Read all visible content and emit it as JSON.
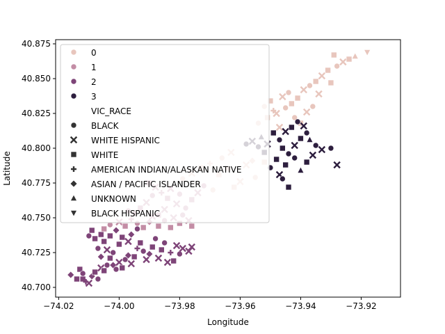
{
  "chart_data": {
    "type": "scatter",
    "xlabel": "Longitude",
    "ylabel": "Latitude",
    "xlim": [
      -74.021,
      -73.907
    ],
    "ylim": [
      40.693,
      40.878
    ],
    "xticks": [
      -74.02,
      -74.0,
      -73.98,
      -73.96,
      -73.94,
      -73.92
    ],
    "xtick_labels": [
      "−74.02",
      "−74.00",
      "−73.98",
      "−73.96",
      "−73.94",
      "−73.92"
    ],
    "yticks": [
      40.7,
      40.725,
      40.75,
      40.775,
      40.8,
      40.825,
      40.85,
      40.875
    ],
    "ytick_labels": [
      "40.700",
      "40.725",
      "40.750",
      "40.775",
      "40.800",
      "40.825",
      "40.850",
      "40.875"
    ],
    "grid": false,
    "legend_placement": "upper-left",
    "hue_series": [
      {
        "name": "0",
        "color": "#e8c6bd"
      },
      {
        "name": "1",
        "color": "#c38da5"
      },
      {
        "name": "2",
        "color": "#7e4478"
      },
      {
        "name": "3",
        "color": "#2d1e3e"
      }
    ],
    "extra_color": "#cccccc",
    "style_title": "VIC_RACE",
    "style_series": [
      {
        "name": "BLACK",
        "marker": "circle"
      },
      {
        "name": "WHITE HISPANIC",
        "marker": "x"
      },
      {
        "name": "WHITE",
        "marker": "square"
      },
      {
        "name": "AMERICAN INDIAN/ALASKAN NATIVE",
        "marker": "plus"
      },
      {
        "name": "ASIAN / PACIFIC ISLANDER",
        "marker": "diamond"
      },
      {
        "name": "UNKNOWN",
        "marker": "triangle-up"
      },
      {
        "name": "BLACK HISPANIC",
        "marker": "triangle-down"
      }
    ],
    "points": [
      [
        -74.016,
        40.709,
        2,
        4
      ],
      [
        -74.014,
        40.706,
        2,
        2
      ],
      [
        -74.013,
        40.713,
        2,
        2
      ],
      [
        -74.012,
        40.706,
        2,
        2
      ],
      [
        -74.011,
        40.704,
        2,
        3
      ],
      [
        -74.01,
        40.703,
        2,
        1
      ],
      [
        -74.012,
        40.71,
        2,
        0
      ],
      [
        -74.009,
        40.708,
        2,
        4
      ],
      [
        -74.008,
        40.711,
        2,
        2
      ],
      [
        -74.007,
        40.706,
        2,
        0
      ],
      [
        -74.006,
        40.714,
        2,
        1
      ],
      [
        -74.005,
        40.712,
        2,
        2
      ],
      [
        -74.004,
        40.716,
        2,
        0
      ],
      [
        -74.006,
        40.722,
        2,
        4
      ],
      [
        -74.007,
        40.728,
        2,
        0
      ],
      [
        -74.008,
        40.735,
        2,
        2
      ],
      [
        -74.005,
        40.733,
        2,
        2
      ],
      [
        -74.004,
        40.727,
        2,
        1
      ],
      [
        -74.003,
        40.721,
        2,
        2
      ],
      [
        -74.002,
        40.716,
        2,
        4
      ],
      [
        -74.001,
        40.713,
        2,
        0
      ],
      [
        -74.0,
        40.718,
        2,
        1
      ],
      [
        -73.999,
        40.714,
        2,
        2
      ],
      [
        -73.998,
        40.72,
        2,
        0
      ],
      [
        -73.997,
        40.723,
        2,
        4
      ],
      [
        -73.996,
        40.717,
        2,
        1
      ],
      [
        -73.995,
        40.722,
        2,
        2
      ],
      [
        -73.994,
        40.728,
        2,
        3
      ],
      [
        -73.993,
        40.732,
        2,
        2
      ],
      [
        -73.992,
        40.726,
        2,
        0
      ],
      [
        -73.991,
        40.72,
        2,
        1
      ],
      [
        -73.99,
        40.724,
        2,
        4
      ],
      [
        -73.989,
        40.729,
        2,
        2
      ],
      [
        -73.988,
        40.735,
        2,
        0
      ],
      [
        -73.987,
        40.721,
        2,
        1
      ],
      [
        -73.986,
        40.727,
        2,
        2
      ],
      [
        -73.985,
        40.732,
        2,
        0
      ],
      [
        -73.984,
        40.718,
        2,
        1
      ],
      [
        -73.983,
        40.725,
        2,
        3
      ],
      [
        -73.982,
        40.719,
        2,
        2
      ],
      [
        -73.981,
        40.73,
        2,
        1
      ],
      [
        -73.98,
        40.724,
        2,
        0
      ],
      [
        -73.979,
        40.728,
        2,
        1
      ],
      [
        -73.977,
        40.726,
        2,
        1
      ],
      [
        -73.976,
        40.729,
        2,
        1
      ],
      [
        -74.003,
        40.737,
        2,
        2
      ],
      [
        -74.001,
        40.741,
        2,
        4
      ],
      [
        -73.999,
        40.736,
        2,
        2
      ],
      [
        -74.009,
        40.741,
        2,
        2
      ],
      [
        -74.01,
        40.737,
        2,
        0
      ],
      [
        -73.996,
        40.738,
        2,
        4
      ],
      [
        -73.994,
        40.742,
        2,
        0
      ],
      [
        -74.002,
        40.725,
        2,
        0
      ],
      [
        -74.0,
        40.731,
        2,
        2
      ],
      [
        -73.997,
        40.733,
        2,
        1
      ],
      [
        -74.006,
        40.738,
        2,
        2
      ],
      [
        -74.005,
        40.742,
        1,
        2
      ],
      [
        -74.003,
        40.745,
        1,
        0
      ],
      [
        -74.0,
        40.747,
        1,
        1
      ],
      [
        -73.998,
        40.744,
        1,
        2
      ],
      [
        -73.996,
        40.749,
        1,
        3
      ],
      [
        -73.994,
        40.746,
        1,
        0
      ],
      [
        -73.992,
        40.743,
        1,
        2
      ],
      [
        -73.99,
        40.747,
        1,
        4
      ],
      [
        -73.989,
        40.751,
        1,
        1
      ],
      [
        -73.987,
        40.744,
        1,
        2
      ],
      [
        -73.985,
        40.748,
        1,
        0
      ],
      [
        -73.983,
        40.743,
        1,
        2
      ],
      [
        -73.982,
        40.75,
        1,
        1
      ],
      [
        -73.98,
        40.746,
        1,
        2
      ],
      [
        -73.979,
        40.752,
        1,
        0
      ],
      [
        -73.977,
        40.748,
        1,
        1
      ],
      [
        -73.976,
        40.744,
        1,
        2
      ],
      [
        -73.978,
        40.757,
        1,
        0
      ],
      [
        -73.981,
        40.76,
        1,
        1
      ],
      [
        -73.984,
        40.764,
        1,
        2
      ],
      [
        -73.986,
        40.768,
        1,
        3
      ],
      [
        -73.989,
        40.766,
        1,
        0
      ],
      [
        -73.991,
        40.761,
        1,
        1
      ],
      [
        -73.993,
        40.757,
        1,
        2
      ],
      [
        -73.995,
        40.753,
        1,
        4
      ],
      [
        -73.997,
        40.755,
        1,
        0
      ],
      [
        -73.985,
        40.756,
        1,
        1
      ],
      [
        -73.987,
        40.752,
        1,
        2
      ],
      [
        -73.983,
        40.771,
        1,
        1
      ],
      [
        -73.98,
        40.767,
        1,
        0
      ],
      [
        -73.976,
        40.763,
        1,
        2
      ],
      [
        -73.974,
        40.768,
        1,
        1
      ],
      [
        -73.972,
        40.773,
        1,
        0
      ],
      [
        -73.988,
        40.772,
        1,
        1
      ],
      [
        -73.99,
        40.775,
        1,
        2
      ],
      [
        -73.979,
        40.778,
        0,
        0
      ],
      [
        -73.976,
        40.782,
        0,
        1
      ],
      [
        -73.973,
        40.786,
        0,
        2
      ],
      [
        -73.97,
        40.789,
        0,
        3
      ],
      [
        -73.966,
        40.793,
        0,
        0
      ],
      [
        -73.963,
        40.797,
        0,
        1
      ],
      [
        -73.967,
        40.781,
        0,
        2
      ],
      [
        -73.964,
        40.785,
        0,
        0
      ],
      [
        -73.958,
        40.788,
        0,
        1
      ],
      [
        -73.956,
        40.791,
        0,
        4
      ],
      [
        -73.952,
        40.79,
        0,
        2
      ],
      [
        -73.955,
        40.779,
        0,
        0
      ],
      [
        -73.96,
        40.776,
        0,
        1
      ],
      [
        -73.962,
        40.772,
        0,
        2
      ],
      [
        -73.969,
        40.77,
        0,
        0
      ],
      [
        -73.954,
        40.818,
        0,
        0
      ],
      [
        -73.951,
        40.822,
        0,
        2
      ],
      [
        -73.948,
        40.825,
        0,
        1
      ],
      [
        -73.945,
        40.829,
        0,
        0
      ],
      [
        -73.943,
        40.832,
        0,
        2
      ],
      [
        -73.947,
        40.815,
        0,
        1
      ],
      [
        -73.949,
        40.827,
        0,
        3
      ],
      [
        -73.952,
        40.83,
        0,
        0
      ],
      [
        -73.95,
        40.834,
        0,
        2
      ],
      [
        -73.946,
        40.837,
        0,
        1
      ],
      [
        -73.944,
        40.84,
        0,
        0
      ],
      [
        -73.941,
        40.836,
        0,
        2
      ],
      [
        -73.939,
        40.842,
        0,
        1
      ],
      [
        -73.937,
        40.845,
        0,
        0
      ],
      [
        -73.935,
        40.848,
        0,
        2
      ],
      [
        -73.942,
        40.822,
        0,
        0
      ],
      [
        -73.938,
        40.826,
        0,
        1
      ],
      [
        -73.94,
        40.818,
        0,
        2
      ],
      [
        -73.936,
        40.83,
        0,
        0
      ],
      [
        -73.933,
        40.852,
        0,
        1
      ],
      [
        -73.931,
        40.856,
        0,
        2
      ],
      [
        -73.928,
        40.859,
        0,
        0
      ],
      [
        -73.926,
        40.862,
        0,
        1
      ],
      [
        -73.924,
        40.864,
        0,
        2
      ],
      [
        -73.922,
        40.866,
        0,
        5
      ],
      [
        -73.918,
        40.869,
        0,
        6
      ],
      [
        -73.929,
        40.867,
        0,
        2
      ],
      [
        -73.934,
        40.839,
        0,
        1
      ],
      [
        -73.93,
        40.847,
        0,
        2
      ],
      [
        -73.947,
        40.806,
        3,
        0
      ],
      [
        -73.949,
        40.811,
        3,
        2
      ],
      [
        -73.951,
        40.803,
        3,
        1
      ],
      [
        -73.953,
        40.808,
        3,
        5
      ],
      [
        -73.946,
        40.8,
        3,
        2
      ],
      [
        -73.944,
        40.796,
        3,
        0
      ],
      [
        -73.942,
        40.802,
        3,
        1
      ],
      [
        -73.94,
        40.807,
        3,
        2
      ],
      [
        -73.938,
        40.811,
        3,
        0
      ],
      [
        -73.945,
        40.812,
        3,
        1
      ],
      [
        -73.948,
        40.792,
        3,
        2
      ],
      [
        -73.95,
        40.786,
        3,
        0
      ],
      [
        -73.947,
        40.781,
        3,
        1
      ],
      [
        -73.945,
        40.788,
        3,
        2
      ],
      [
        -73.942,
        40.793,
        3,
        0
      ],
      [
        -73.94,
        40.784,
        3,
        5
      ],
      [
        -73.938,
        40.79,
        3,
        2
      ],
      [
        -73.936,
        40.795,
        3,
        1
      ],
      [
        -73.935,
        40.802,
        3,
        0
      ],
      [
        -73.933,
        40.799,
        3,
        1
      ],
      [
        -73.93,
        40.8,
        3,
        0
      ],
      [
        -73.952,
        40.797,
        3,
        2
      ],
      [
        -73.954,
        40.801,
        3,
        0
      ],
      [
        -73.956,
        40.805,
        3,
        1
      ],
      [
        -73.958,
        40.803,
        3,
        0
      ],
      [
        -73.943,
        40.815,
        3,
        2
      ],
      [
        -73.941,
        40.819,
        3,
        0
      ],
      [
        -73.939,
        40.816,
        3,
        1
      ],
      [
        -73.944,
        40.772,
        3,
        2
      ],
      [
        -73.928,
        40.788,
        3,
        1
      ],
      [
        -73.946,
        40.778,
        3,
        0
      ],
      [
        -73.937,
        40.806,
        3,
        5
      ]
    ]
  }
}
